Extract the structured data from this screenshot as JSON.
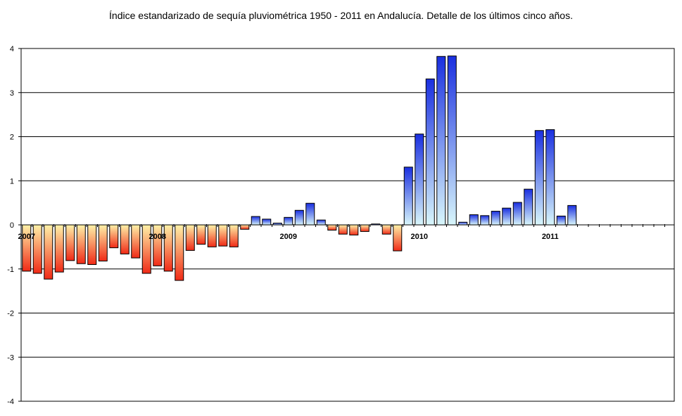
{
  "chart_data": {
    "type": "bar",
    "title": "Índice estandarizado de sequía pluviométrica 1950 - 2011 en Andalucía. Detalle de los últimos cinco años.",
    "xlabel": "",
    "ylabel": "",
    "ylim": [
      -4,
      4
    ],
    "yticks": [
      -4,
      -3,
      -2,
      -1,
      0,
      1,
      2,
      3,
      4
    ],
    "grid": true,
    "legend": "none",
    "year_labels": [
      {
        "label": "2007",
        "index": 0
      },
      {
        "label": "2008",
        "index": 12
      },
      {
        "label": "2009",
        "index": 24
      },
      {
        "label": "2010",
        "index": 36
      },
      {
        "label": "2011",
        "index": 48
      }
    ],
    "period_count": 60,
    "values": [
      -1.05,
      -1.1,
      -1.23,
      -1.07,
      -0.81,
      -0.88,
      -0.9,
      -0.82,
      -0.52,
      -0.66,
      -0.75,
      -1.1,
      -0.93,
      -1.05,
      -1.26,
      -0.58,
      -0.44,
      -0.5,
      -0.48,
      -0.5,
      -0.1,
      0.19,
      0.13,
      0.04,
      0.17,
      0.33,
      0.49,
      0.11,
      -0.12,
      -0.21,
      -0.23,
      -0.15,
      0.02,
      -0.21,
      -0.59,
      1.31,
      2.06,
      3.31,
      3.82,
      3.83,
      0.06,
      0.23,
      0.21,
      0.31,
      0.38,
      0.51,
      0.81,
      2.14,
      2.16,
      0.2,
      0.44
    ],
    "colors": {
      "positive_top": "#1a2fe0",
      "positive_bottom": "#d8f6fb",
      "negative_top": "#fff2a8",
      "negative_bottom": "#f02a16"
    }
  }
}
